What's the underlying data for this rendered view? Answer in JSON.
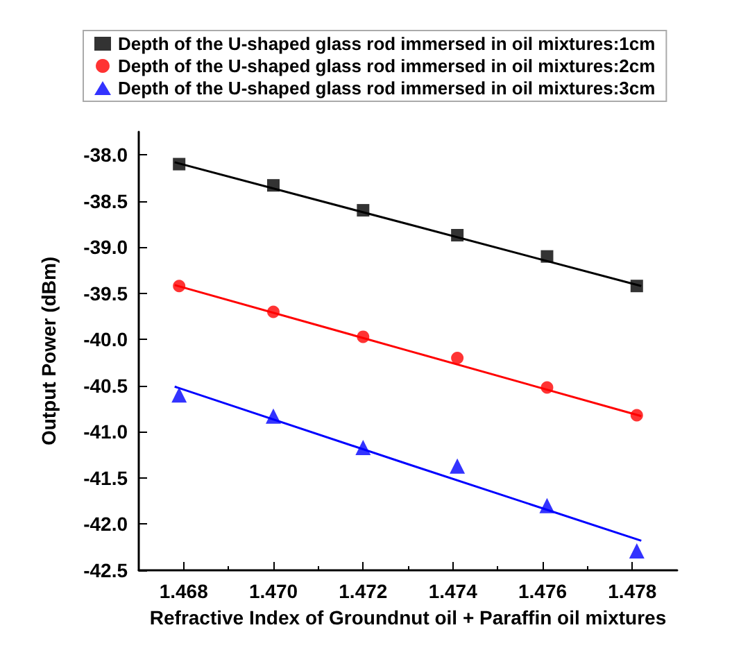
{
  "chart_data": {
    "type": "scatter",
    "xlabel": "Refractive Index of Groundnut oil + Paraffin oil mixtures",
    "ylabel": "Output Power (dBm)",
    "xlim": [
      1.467,
      1.479
    ],
    "xticks": [
      {
        "value": 1.468,
        "label": "1.468"
      },
      {
        "value": 1.47,
        "label": "1.470"
      },
      {
        "value": 1.472,
        "label": "1.472"
      },
      {
        "value": 1.474,
        "label": "1.474"
      },
      {
        "value": 1.476,
        "label": "1.476"
      },
      {
        "value": 1.478,
        "label": "1.478"
      }
    ],
    "ylim": [
      -42.5,
      -37.75
    ],
    "yticks": [
      {
        "value": -42.5,
        "label": "-42.5"
      },
      {
        "value": -42,
        "label": "-42.0"
      },
      {
        "value": -41.5,
        "label": "-41.5"
      },
      {
        "value": -41,
        "label": "-41.0"
      },
      {
        "value": -40.5,
        "label": "-40.5"
      },
      {
        "value": -40,
        "label": "-40.0"
      },
      {
        "value": -39.5,
        "label": "-39.5"
      },
      {
        "value": -39,
        "label": "-39.0"
      },
      {
        "value": -38.5,
        "label": "-38.5"
      },
      {
        "value": -38,
        "label": "-38.0"
      }
    ],
    "grid": false,
    "legend": "top",
    "x": [
      1.4679,
      1.47,
      1.472,
      1.4741,
      1.4761,
      1.4781
    ],
    "series": [
      {
        "name": "Depth of the U-shaped glass rod immersed in oil mixtures:1cm",
        "color": "#000000",
        "marker": "square",
        "values": [
          -38.1,
          -38.33,
          -38.6,
          -38.87,
          -39.1,
          -39.42
        ]
      },
      {
        "name": "Depth of the U-shaped glass rod immersed in oil mixtures:2cm",
        "color": "#ff0000",
        "marker": "circle",
        "values": [
          -39.42,
          -39.7,
          -39.97,
          -40.2,
          -40.52,
          -40.82
        ]
      },
      {
        "name": "Depth of the U-shaped glass rod immersed in oil mixtures:3cm",
        "color": "#0000ff",
        "marker": "triangle",
        "values": [
          -40.6,
          -40.83,
          -41.17,
          -41.37,
          -41.8,
          -42.29
        ]
      },
      {
        "type": "line",
        "color": "#000000",
        "marker": "none",
        "x": [
          1.4678,
          1.473,
          1.4782
        ],
        "values": [
          -38.08,
          -38.75,
          -39.42
        ]
      },
      {
        "type": "line",
        "color": "#ff0000",
        "marker": "none",
        "x": [
          1.4678,
          1.473,
          1.4782
        ],
        "values": [
          -39.41,
          -40.12,
          -40.83
        ]
      },
      {
        "type": "line",
        "color": "#0000ff",
        "marker": "none",
        "x": [
          1.4678,
          1.473,
          1.4782
        ],
        "values": [
          -40.51,
          -41.35,
          -42.18
        ]
      }
    ]
  }
}
